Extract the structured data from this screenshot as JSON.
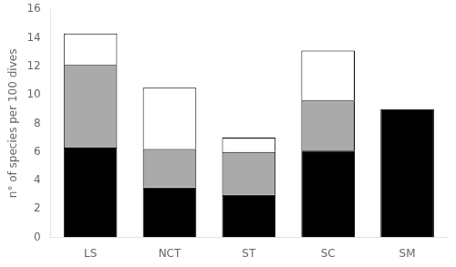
{
  "chart_data": {
    "type": "bar",
    "stacked": true,
    "grid": false,
    "categories": [
      "LS",
      "NCT",
      "ST",
      "SC",
      "SM"
    ],
    "series": [
      {
        "color": "#000000",
        "values": [
          6.3,
          3.5,
          3.0,
          6.1,
          9.0
        ]
      },
      {
        "color": "#aaaaaa",
        "values": [
          5.8,
          2.7,
          3.0,
          3.5,
          0.0
        ]
      },
      {
        "color": "#ffffff",
        "values": [
          2.2,
          4.3,
          1.0,
          3.5,
          0.0
        ]
      }
    ],
    "ylabel": "n° of species per 100 dives",
    "ylim": [
      0,
      16
    ],
    "yticks": [
      0,
      2,
      4,
      6,
      8,
      10,
      12,
      14,
      16
    ]
  }
}
